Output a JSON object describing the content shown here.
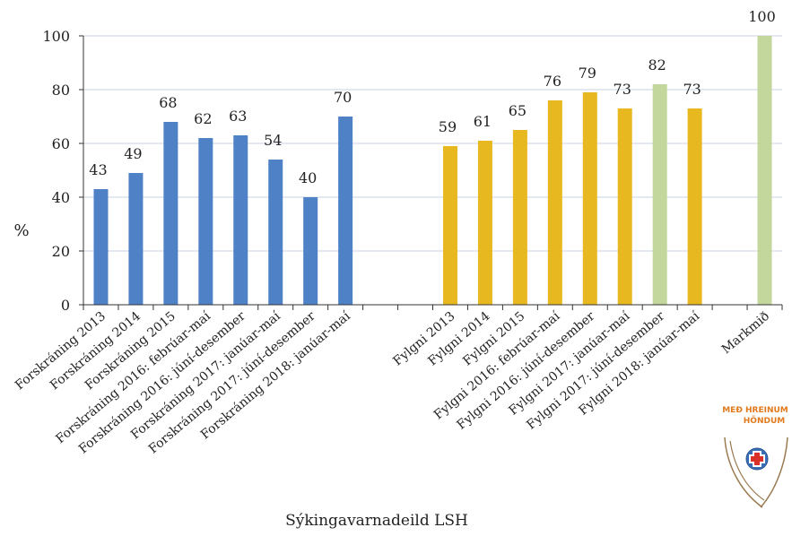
{
  "chart_data": {
    "type": "bar",
    "ylabel": "%",
    "ylim": [
      0,
      100
    ],
    "yticks": [
      0,
      20,
      40,
      60,
      80,
      100
    ],
    "grid": true,
    "footer": "Sýkingavarnadeild LSH",
    "colors": {
      "blue": "#4f81c7",
      "yellow": "#e8b820",
      "green": "#c3d69b"
    },
    "categories": [
      "Forskráning 2013",
      "Forskráning 2014",
      "Forskráning 2015",
      "Forskráning 2016: febrúar-maí",
      "Forskráning 2016: júní-desember",
      "Forskráning 2017: janúar-maí",
      "Forskráning 2017: júní-desember",
      "Forskráning 2018: janúar-maí",
      "Fylgni 2013",
      "Fylgni 2014",
      "Fylgni 2015",
      "Fylgni 2016: febrúar-maí",
      "Fylgni 2016: júní-desember",
      "Fylgni 2017: janúar-maí",
      "Fylgni 2017: júní-desember",
      "Fylgni 2018: janúar-maí",
      "Markmið"
    ],
    "values": [
      43,
      49,
      68,
      62,
      63,
      54,
      40,
      70,
      59,
      61,
      65,
      76,
      79,
      73,
      82,
      73,
      100
    ],
    "bar_colors": [
      "blue",
      "blue",
      "blue",
      "blue",
      "blue",
      "blue",
      "blue",
      "blue",
      "yellow",
      "yellow",
      "yellow",
      "yellow",
      "yellow",
      "yellow",
      "green",
      "yellow",
      "green"
    ]
  },
  "logo": {
    "icon": "hands-cross-logo-icon",
    "text": "MEÐ HREINUM HÖNDUM"
  }
}
